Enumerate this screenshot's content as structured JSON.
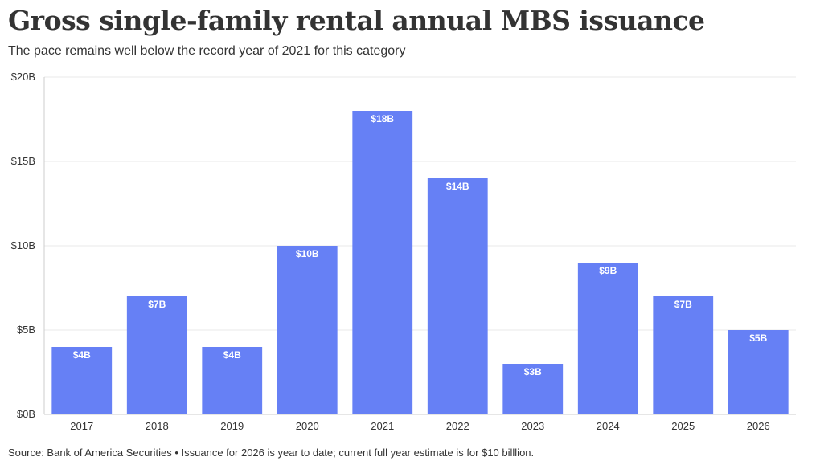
{
  "title": "Gross single-family rental annual MBS issuance",
  "subtitle": "The pace remains well below the record year of 2021 for this category",
  "footer": "Source: Bank of America Securities • Issuance for 2026 is year to date; current full year estimate is for $10 billlion.",
  "colors": {
    "bar": "#6680f5",
    "grid": "#e8e8e8",
    "axis": "#cccccc",
    "text": "#333333",
    "bar_label": "#ffffff"
  },
  "chart_data": {
    "type": "bar",
    "categories": [
      "2017",
      "2018",
      "2019",
      "2020",
      "2021",
      "2022",
      "2023",
      "2024",
      "2025",
      "2026"
    ],
    "values": [
      4,
      7,
      4,
      10,
      18,
      14,
      3,
      9,
      7,
      5
    ],
    "data_labels": [
      "$4B",
      "$7B",
      "$4B",
      "$10B",
      "$18B",
      "$14B",
      "$3B",
      "$9B",
      "$7B",
      "$5B"
    ],
    "yticks": [
      0,
      5,
      10,
      15,
      20
    ],
    "ytick_labels": [
      "$0B",
      "$5B",
      "$10B",
      "$15B",
      "$20B"
    ],
    "ylim": [
      0,
      20
    ],
    "unit": "billions of dollars",
    "grid": true,
    "legend": false
  }
}
